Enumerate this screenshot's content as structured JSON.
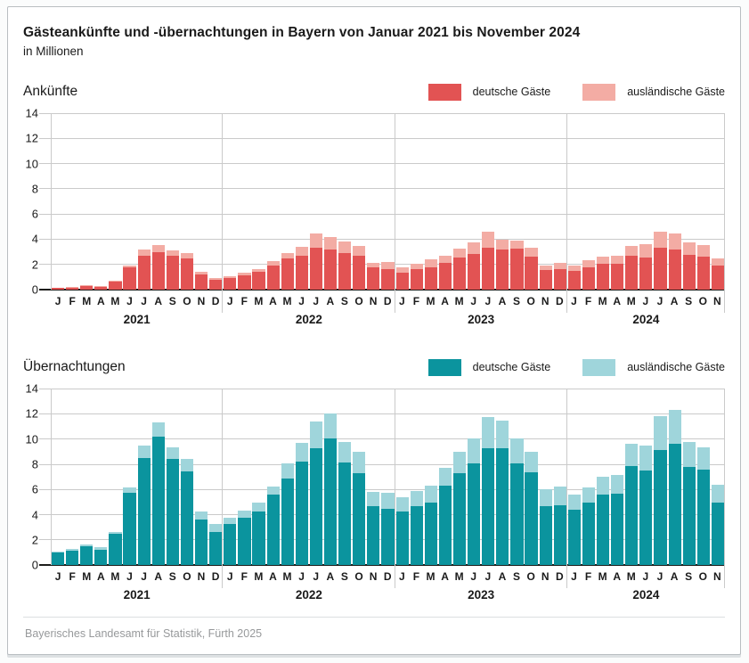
{
  "page": {
    "title": "Gästeankünfte und -übernachtungen in Bayern von Januar 2021 bis November 2024",
    "subtitle": "in Millionen",
    "footer": "Bayerisches Landesamt für Statistik, Fürth 2025"
  },
  "colors": {
    "arrivals_domestic": "#e25353",
    "arrivals_foreign": "#f3aca4",
    "overnights_domestic": "#0b949e",
    "overnights_foreign": "#9fd5db",
    "grid": "#cacaca",
    "axis": "#1d1d1b"
  },
  "chart_data": [
    {
      "type": "bar",
      "stacked": true,
      "title": "Ankünfte",
      "unit": "Millionen",
      "ylim": [
        0,
        14
      ],
      "yticks": [
        0,
        2,
        4,
        6,
        8,
        10,
        12,
        14
      ],
      "grid": true,
      "legend_position": "top-right",
      "years": [
        {
          "label": "2021",
          "month_letters": [
            "J",
            "F",
            "M",
            "A",
            "M",
            "J",
            "J",
            "A",
            "S",
            "O",
            "N",
            "D"
          ]
        },
        {
          "label": "2022",
          "month_letters": [
            "J",
            "F",
            "M",
            "A",
            "M",
            "J",
            "J",
            "A",
            "S",
            "O",
            "N",
            "D"
          ]
        },
        {
          "label": "2023",
          "month_letters": [
            "J",
            "F",
            "M",
            "A",
            "M",
            "J",
            "J",
            "A",
            "S",
            "O",
            "N",
            "D"
          ]
        },
        {
          "label": "2024",
          "month_letters": [
            "J",
            "F",
            "M",
            "A",
            "M",
            "J",
            "J",
            "A",
            "S",
            "O",
            "N"
          ]
        }
      ],
      "series": [
        {
          "name": "deutsche Gäste",
          "color_key": "arrivals_domestic",
          "values": [
            0.12,
            0.17,
            0.32,
            0.25,
            0.67,
            1.76,
            2.72,
            3.0,
            2.7,
            2.5,
            1.22,
            0.81,
            0.95,
            1.15,
            1.39,
            1.89,
            2.47,
            2.7,
            3.35,
            3.21,
            2.91,
            2.66,
            1.78,
            1.64,
            1.38,
            1.6,
            1.78,
            2.1,
            2.55,
            2.8,
            3.3,
            3.15,
            3.25,
            2.6,
            1.53,
            1.6,
            1.5,
            1.8,
            2.07,
            2.04,
            2.67,
            2.58,
            3.32,
            3.18,
            2.78,
            2.65,
            1.88
          ]
        },
        {
          "name": "ausländische Gäste",
          "color_key": "arrivals_foreign",
          "values": [
            0.04,
            0.06,
            0.07,
            0.07,
            0.07,
            0.16,
            0.45,
            0.55,
            0.44,
            0.43,
            0.21,
            0.11,
            0.11,
            0.19,
            0.23,
            0.4,
            0.45,
            0.72,
            1.08,
            0.99,
            0.88,
            0.8,
            0.37,
            0.58,
            0.42,
            0.45,
            0.62,
            0.62,
            0.73,
            0.95,
            1.28,
            0.8,
            0.65,
            0.72,
            0.42,
            0.5,
            0.43,
            0.55,
            0.52,
            0.62,
            0.78,
            1.0,
            1.28,
            1.26,
            1.0,
            0.9,
            0.57
          ]
        }
      ]
    },
    {
      "type": "bar",
      "stacked": true,
      "title": "Übernachtungen",
      "unit": "Millionen",
      "ylim": [
        0,
        14
      ],
      "yticks": [
        0,
        2,
        4,
        6,
        8,
        10,
        12,
        14
      ],
      "grid": true,
      "legend_position": "top-right",
      "years": [
        {
          "label": "2021",
          "month_letters": [
            "J",
            "F",
            "M",
            "A",
            "M",
            "J",
            "J",
            "A",
            "S",
            "O",
            "N",
            "D"
          ]
        },
        {
          "label": "2022",
          "month_letters": [
            "J",
            "F",
            "M",
            "A",
            "M",
            "J",
            "J",
            "A",
            "S",
            "O",
            "N",
            "D"
          ]
        },
        {
          "label": "2023",
          "month_letters": [
            "J",
            "F",
            "M",
            "A",
            "M",
            "J",
            "J",
            "A",
            "S",
            "O",
            "N",
            "D"
          ]
        },
        {
          "label": "2024",
          "month_letters": [
            "J",
            "F",
            "M",
            "A",
            "M",
            "J",
            "J",
            "A",
            "S",
            "O",
            "N"
          ]
        }
      ],
      "series": [
        {
          "name": "deutsche Gäste",
          "color_key": "overnights_domestic",
          "values": [
            0.98,
            1.12,
            1.5,
            1.22,
            2.48,
            5.75,
            8.5,
            10.2,
            8.45,
            7.45,
            3.65,
            2.62,
            3.25,
            3.77,
            4.28,
            5.6,
            6.9,
            8.25,
            9.25,
            10.05,
            8.15,
            7.3,
            4.7,
            4.45,
            4.25,
            4.7,
            5.0,
            6.3,
            7.3,
            8.1,
            9.25,
            9.3,
            8.1,
            7.35,
            4.7,
            4.72,
            4.4,
            5.0,
            5.6,
            5.65,
            7.85,
            7.5,
            9.15,
            9.6,
            7.8,
            7.55,
            4.95
          ]
        },
        {
          "name": "ausländische Gäste",
          "color_key": "overnights_foreign",
          "values": [
            0.07,
            0.16,
            0.17,
            0.2,
            0.18,
            0.45,
            0.97,
            1.1,
            0.93,
            0.98,
            0.63,
            0.62,
            0.5,
            0.58,
            0.7,
            0.67,
            1.2,
            1.45,
            2.15,
            2.0,
            1.65,
            1.7,
            1.1,
            1.3,
            1.15,
            1.15,
            1.3,
            1.4,
            1.7,
            1.95,
            2.5,
            2.2,
            1.95,
            1.65,
            1.35,
            1.5,
            1.2,
            1.2,
            1.4,
            1.5,
            1.75,
            2.0,
            2.65,
            2.75,
            1.95,
            1.8,
            1.4
          ]
        }
      ]
    }
  ]
}
